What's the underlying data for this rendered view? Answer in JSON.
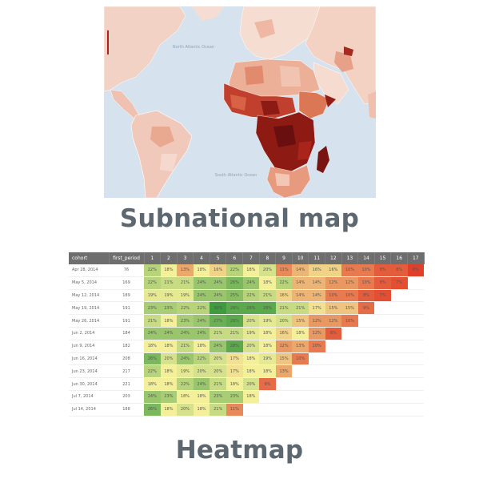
{
  "map": {
    "title": "Subnational map",
    "ocean_labels": [
      "North Atlantic Ocean",
      "South Atlantic Ocean"
    ],
    "colors": {
      "ocean": "#d6e3ef",
      "land_light": "#f3d3c6",
      "land_mid": "#e58b6e",
      "land_dark": "#a9251c",
      "land_darkest": "#6a0f10"
    }
  },
  "heatmap": {
    "title": "Heatmap",
    "columns": [
      "cohort",
      "first_period",
      "1",
      "2",
      "3",
      "4",
      "5",
      "6",
      "7",
      "8",
      "9",
      "10",
      "11",
      "12",
      "13",
      "14",
      "15",
      "16",
      "17"
    ],
    "rows": [
      {
        "cohort": "Apr 28, 2014",
        "first_period": "76",
        "values": [
          "22%",
          "18%",
          "13%",
          "18%",
          "16%",
          "22%",
          "18%",
          "20%",
          "11%",
          "14%",
          "16%",
          "16%",
          "10%",
          "10%",
          "8%",
          "8%",
          "6%"
        ]
      },
      {
        "cohort": "May 5, 2014",
        "first_period": "169",
        "values": [
          "22%",
          "21%",
          "21%",
          "24%",
          "24%",
          "26%",
          "24%",
          "18%",
          "22%",
          "14%",
          "14%",
          "12%",
          "12%",
          "10%",
          "8%",
          "7%"
        ]
      },
      {
        "cohort": "May 12, 2014",
        "first_period": "189",
        "values": [
          "19%",
          "19%",
          "19%",
          "24%",
          "24%",
          "25%",
          "22%",
          "21%",
          "16%",
          "14%",
          "14%",
          "10%",
          "10%",
          "8%",
          "7%"
        ]
      },
      {
        "cohort": "May 19, 2014",
        "first_period": "191",
        "values": [
          "23%",
          "23%",
          "22%",
          "22%",
          "30%",
          "28%",
          "28%",
          "28%",
          "21%",
          "21%",
          "17%",
          "15%",
          "15%",
          "9%"
        ]
      },
      {
        "cohort": "May 26, 2014",
        "first_period": "191",
        "values": [
          "21%",
          "18%",
          "23%",
          "24%",
          "27%",
          "28%",
          "20%",
          "19%",
          "20%",
          "15%",
          "12%",
          "12%",
          "10%"
        ]
      },
      {
        "cohort": "Jun 2, 2014",
        "first_period": "184",
        "values": [
          "24%",
          "24%",
          "24%",
          "24%",
          "21%",
          "21%",
          "19%",
          "18%",
          "16%",
          "18%",
          "12%",
          "8%"
        ]
      },
      {
        "cohort": "Jun 9, 2014",
        "first_period": "182",
        "values": [
          "18%",
          "18%",
          "21%",
          "18%",
          "24%",
          "28%",
          "20%",
          "18%",
          "12%",
          "13%",
          "10%"
        ]
      },
      {
        "cohort": "Jun 16, 2014",
        "first_period": "208",
        "values": [
          "26%",
          "20%",
          "24%",
          "22%",
          "20%",
          "17%",
          "18%",
          "19%",
          "15%",
          "10%"
        ]
      },
      {
        "cohort": "Jun 23, 2014",
        "first_period": "217",
        "values": [
          "22%",
          "18%",
          "19%",
          "20%",
          "20%",
          "17%",
          "18%",
          "18%",
          "13%"
        ]
      },
      {
        "cohort": "Jun 30, 2014",
        "first_period": "221",
        "values": [
          "18%",
          "18%",
          "22%",
          "24%",
          "21%",
          "18%",
          "20%",
          "9%"
        ]
      },
      {
        "cohort": "Jul 7, 2014",
        "first_period": "203",
        "values": [
          "24%",
          "23%",
          "18%",
          "18%",
          "23%",
          "23%",
          "18%"
        ]
      },
      {
        "cohort": "Jul 14, 2014",
        "first_period": "188",
        "values": [
          "26%",
          "18%",
          "20%",
          "18%",
          "21%",
          "11%"
        ]
      }
    ],
    "scale": {
      "high": "#3e9b3e",
      "mid": "#f4f09a",
      "low": "#e0402a",
      "empty": "#ffffff",
      "header_bg": "#6e6e6e"
    }
  }
}
